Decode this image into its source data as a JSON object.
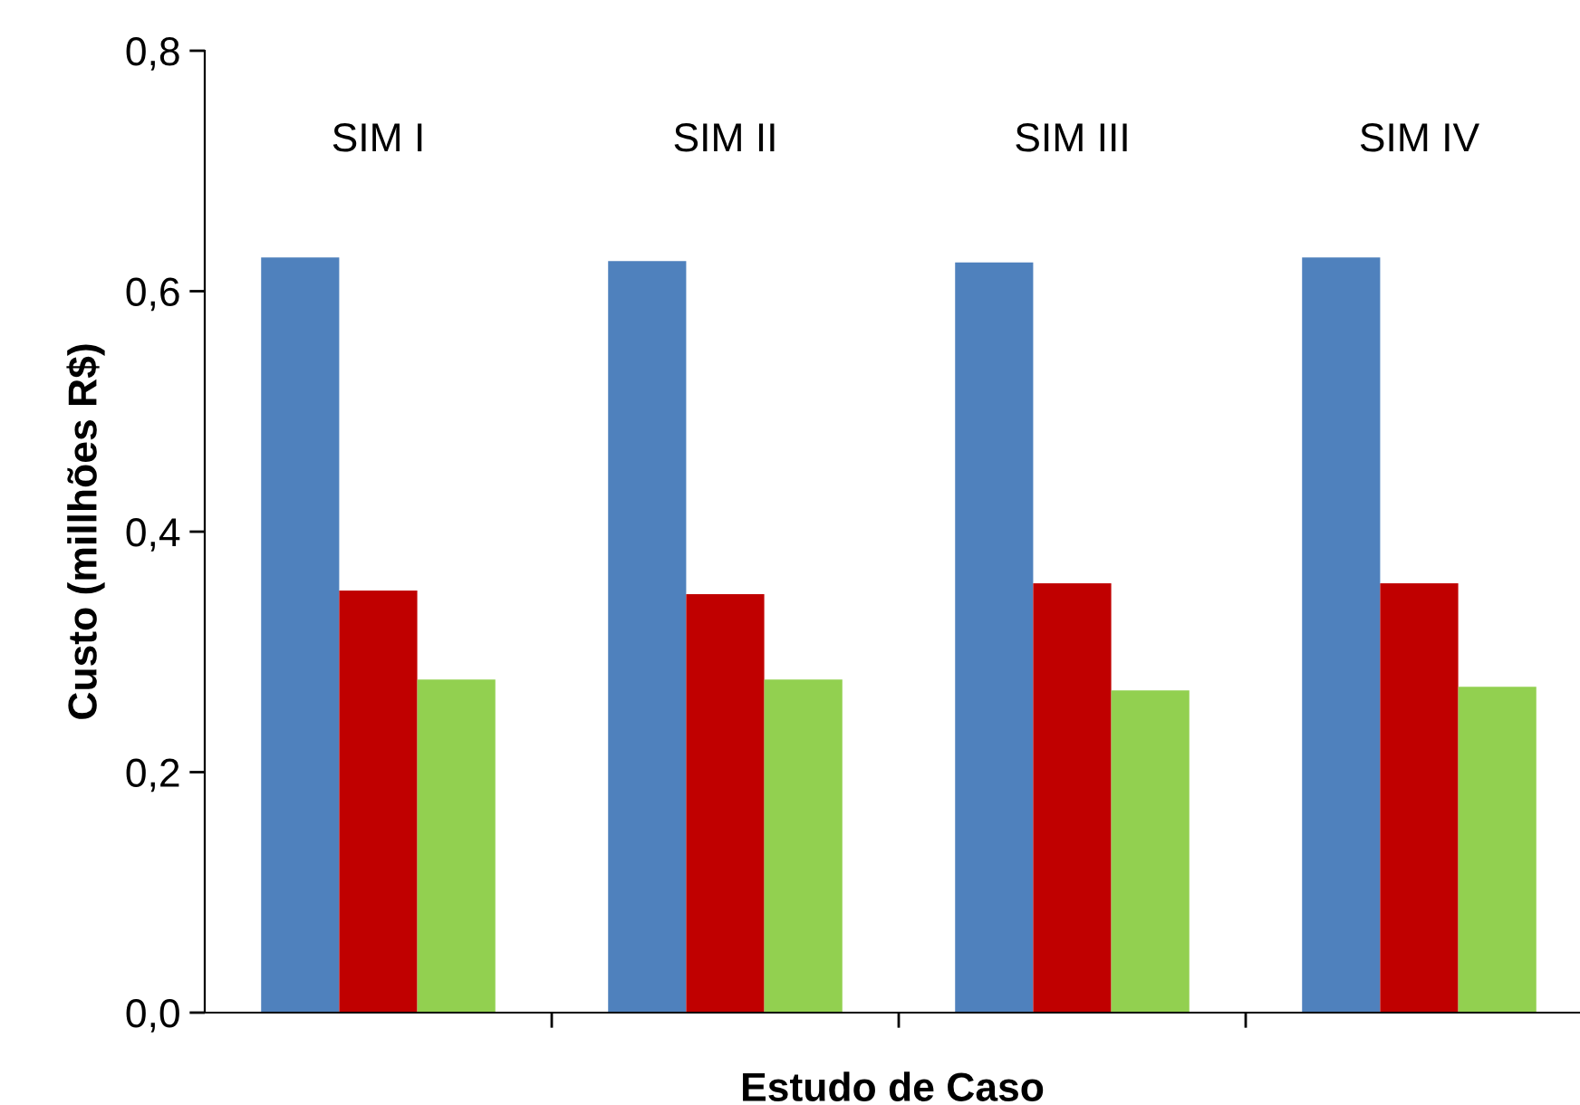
{
  "chart_data": {
    "type": "bar",
    "xlabel": "Estudo de Caso",
    "ylabel": "Custo (millhões R$)",
    "categories": [
      "SIM I",
      "SIM II",
      "SIM III",
      "SIM IV"
    ],
    "series": [
      {
        "color": "#4f81bd",
        "values": [
          0.628,
          0.625,
          0.624,
          0.628
        ]
      },
      {
        "color": "#c00000",
        "values": [
          0.351,
          0.348,
          0.357,
          0.357
        ]
      },
      {
        "color": "#92d050",
        "values": [
          0.277,
          0.277,
          0.268,
          0.271
        ]
      }
    ],
    "ylim": [
      0,
      0.8
    ],
    "yticks": [
      {
        "value": 0,
        "label": "0,0"
      },
      {
        "value": 0.2,
        "label": "0,2"
      },
      {
        "value": 0.4,
        "label": "0,4"
      },
      {
        "value": 0.6,
        "label": "0,6"
      },
      {
        "value": 0.8,
        "label": "0,8"
      }
    ],
    "grid": false,
    "legend": false
  }
}
